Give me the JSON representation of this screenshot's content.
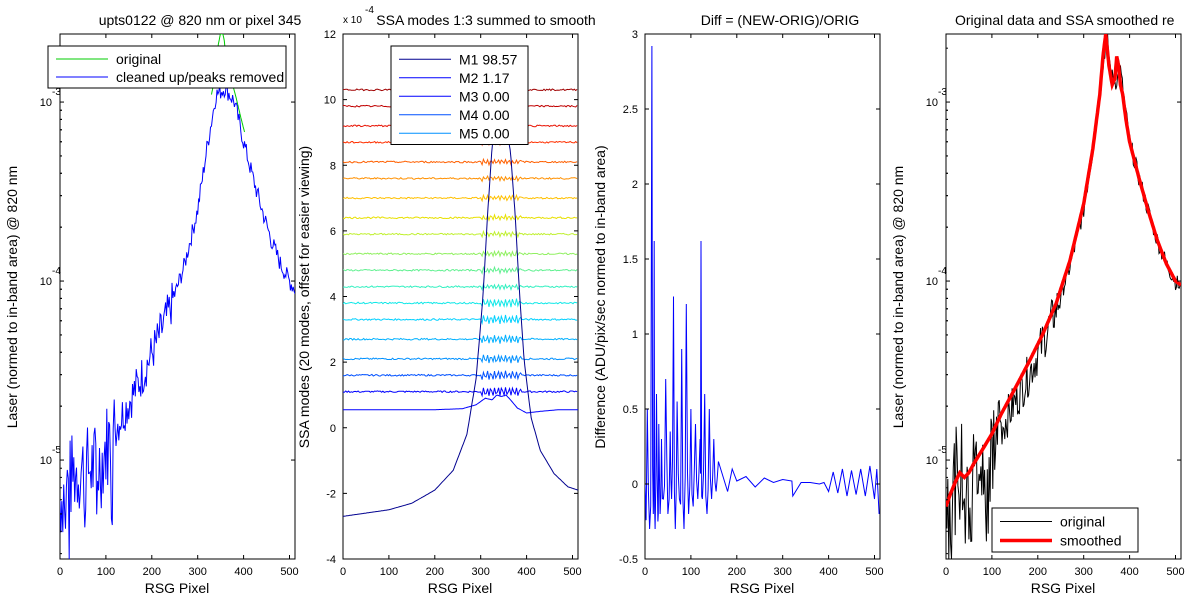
{
  "chart_data": [
    {
      "type": "line",
      "title": "upts0122 @ 820 nm or pixel 345",
      "xlabel": "RSG Pixel",
      "ylabel": "Laser (normed to in-band area) @ 820 nm",
      "xlim": [
        0,
        512
      ],
      "ylim": [
        2.8e-06,
        0.0024
      ],
      "yscale": "log",
      "xticks": [
        "0",
        "100",
        "200",
        "300",
        "400",
        "500"
      ],
      "yticks": [
        {
          "base": "10",
          "exp": "-5",
          "value": 1e-05
        },
        {
          "base": "10",
          "exp": "-4",
          "value": 0.0001
        },
        {
          "base": "10",
          "exp": "-3",
          "value": 0.001
        }
      ],
      "legend": {
        "position": "top",
        "entries": [
          "original",
          "cleaned up/peaks removed"
        ]
      },
      "series": [
        {
          "name": "original",
          "color": "#00cc00",
          "x": [
            330,
            338,
            345,
            352,
            358,
            362,
            366,
            370,
            376,
            382,
            388,
            395,
            402
          ],
          "y": [
            0.0011,
            0.0014,
            0.0021,
            0.0026,
            0.0022,
            0.0017,
            0.0014,
            0.00135,
            0.00125,
            0.0011,
            0.00095,
            0.0008,
            0.00068
          ]
        },
        {
          "name": "cleaned up/peaks removed",
          "color": "#0000ff",
          "x": [
            0,
            30,
            60,
            90,
            100,
            120,
            150,
            180,
            210,
            240,
            270,
            300,
            320,
            340,
            360,
            380,
            400,
            420,
            440,
            460,
            480,
            500,
            512
          ],
          "y": [
            6e-06,
            8.5e-06,
            9e-06,
            9.5e-06,
            1.2e-05,
            1.5e-05,
            2.1e-05,
            3e-05,
            4.5e-05,
            7e-05,
            0.00012,
            0.00025,
            0.00055,
            0.0011,
            0.0012,
            0.001,
            0.0006,
            0.00038,
            0.00025,
            0.00017,
            0.000125,
            0.0001,
            9e-05
          ]
        }
      ]
    },
    {
      "type": "line",
      "title": "SSA modes 1:3 summed to smooth",
      "scale_note": {
        "base": "x 10",
        "exp": "-4"
      },
      "xlabel": "RSG Pixel",
      "ylabel": "SSA modes (20 modes, offset for easier viewing)",
      "xlim": [
        0,
        512
      ],
      "ylim": [
        -4,
        12
      ],
      "xticks": [
        "0",
        "100",
        "200",
        "300",
        "400",
        "500"
      ],
      "yticks": [
        "-4",
        "-2",
        "0",
        "2",
        "4",
        "6",
        "8",
        "10",
        "12"
      ],
      "legend": {
        "position": "top",
        "entries": [
          "M1 98.57",
          "M2 1.17",
          "M3 0.00",
          "M4 0.00",
          "M5 0.00"
        ]
      },
      "series": [
        {
          "name": "M1 98.57",
          "color": "#00008f",
          "x": [
            0,
            50,
            100,
            150,
            200,
            240,
            270,
            290,
            305,
            315,
            325,
            335,
            345,
            355,
            365,
            375,
            385,
            395,
            410,
            430,
            460,
            490,
            512
          ],
          "y": [
            -2.7,
            -2.6,
            -2.5,
            -2.3,
            -1.9,
            -1.3,
            -0.2,
            1.5,
            4.0,
            6.5,
            8.6,
            9.4,
            9.5,
            9.2,
            8.4,
            6.5,
            4.0,
            2.0,
            0.3,
            -0.7,
            -1.4,
            -1.8,
            -1.9
          ]
        },
        {
          "name": "M2 1.17",
          "color": "#0000ff",
          "x": [
            0,
            100,
            200,
            260,
            290,
            310,
            325,
            335,
            345,
            355,
            365,
            380,
            400,
            430,
            470,
            512
          ],
          "y": [
            0.55,
            0.55,
            0.55,
            0.58,
            0.7,
            0.9,
            0.85,
            1.0,
            0.95,
            1.0,
            0.85,
            0.6,
            0.45,
            0.5,
            0.55,
            0.55
          ]
        },
        {
          "name": "M3 0.00",
          "color": "#0000ff",
          "offset": 1.1
        },
        {
          "name": "M4 0.00",
          "color": "#0050ff",
          "offset": 1.6
        },
        {
          "name": "M5 0.00",
          "color": "#0090ff",
          "offset": 2.1
        }
      ],
      "offset_mode_colors": [
        "#00b0ff",
        "#00d0ff",
        "#10e8e8",
        "#30f0c0",
        "#60f090",
        "#90f060",
        "#c0f030",
        "#e8e000",
        "#ffc000",
        "#ff9000",
        "#ff6000",
        "#ff3000",
        "#e81000",
        "#c00000",
        "#a00000"
      ],
      "offset_mode_levels": [
        2.7,
        3.3,
        3.8,
        4.3,
        4.8,
        5.3,
        5.9,
        6.4,
        7.0,
        7.6,
        8.1,
        8.7,
        9.2,
        9.8,
        10.3
      ]
    },
    {
      "type": "line",
      "title": "Diff = (NEW-ORIG)/ORIG",
      "xlabel": "RSG Pixel",
      "ylabel": "Difference (ADU/pix/sec normed to in-band area)",
      "xlim": [
        0,
        512
      ],
      "ylim": [
        -0.5,
        3
      ],
      "xticks": [
        "0",
        "100",
        "200",
        "300",
        "400",
        "500"
      ],
      "yticks": [
        "-0.5",
        "0",
        "0.5",
        "1",
        "1.5",
        "2",
        "2.5",
        "3"
      ],
      "series": [
        {
          "name": "",
          "color": "#0000ff",
          "x": [
            0,
            5,
            10,
            15,
            18,
            20,
            22,
            25,
            28,
            30,
            33,
            36,
            40,
            45,
            50,
            55,
            58,
            62,
            66,
            70,
            75,
            80,
            85,
            90,
            95,
            100,
            105,
            110,
            115,
            120,
            122,
            125,
            130,
            135,
            140,
            145,
            150,
            155,
            160,
            170,
            180,
            190,
            200,
            220,
            240,
            260,
            280,
            300,
            320,
            322,
            340,
            360,
            380,
            390,
            400,
            410,
            420,
            430,
            440,
            450,
            460,
            470,
            480,
            490,
            500,
            505,
            510
          ],
          "y": [
            0,
            0.5,
            -0.3,
            2.92,
            -0.2,
            1.62,
            -0.3,
            0.6,
            -0.25,
            0.4,
            -0.2,
            0.3,
            -0.1,
            0.7,
            -0.2,
            0.35,
            -0.1,
            1.25,
            -0.3,
            0.55,
            -0.1,
            0.9,
            -0.3,
            1.2,
            -0.2,
            0.5,
            -0.15,
            0.4,
            -0.1,
            0.3,
            1.62,
            -0.1,
            0.6,
            -0.2,
            0.5,
            -0.1,
            0.3,
            -0.05,
            0.15,
            0.05,
            -0.05,
            0.1,
            0.02,
            0.05,
            -0.02,
            0.04,
            0.01,
            0.03,
            0.02,
            -0.08,
            0.01,
            0.01,
            0.0,
            0.01,
            -0.05,
            0.08,
            -0.06,
            0.1,
            -0.08,
            0.09,
            -0.07,
            0.1,
            -0.08,
            0.12,
            -0.1,
            0.1,
            -0.2
          ]
        }
      ]
    },
    {
      "type": "line",
      "title": "Original data and SSA smoothed re",
      "xlabel": "RSG Pixel",
      "ylabel": "Laser (normed to in-band area) @ 820 nm",
      "xlim": [
        0,
        512
      ],
      "ylim": [
        2.8e-06,
        0.0024
      ],
      "yscale": "log",
      "xticks": [
        "0",
        "100",
        "200",
        "300",
        "400",
        "500"
      ],
      "yticks": [
        {
          "base": "10",
          "exp": "-5",
          "value": 1e-05
        },
        {
          "base": "10",
          "exp": "-4",
          "value": 0.0001
        },
        {
          "base": "10",
          "exp": "-3",
          "value": 0.001
        }
      ],
      "legend": {
        "position": "bottom-right",
        "entries": [
          "original",
          "smoothed"
        ]
      },
      "series": [
        {
          "name": "original",
          "color": "#000000",
          "x": [
            0,
            30,
            60,
            90,
            100,
            120,
            150,
            180,
            210,
            240,
            270,
            300,
            320,
            340,
            350,
            360,
            370,
            380,
            400,
            420,
            440,
            460,
            480,
            500,
            512
          ],
          "y": [
            6e-06,
            8.5e-06,
            9e-06,
            9.5e-06,
            1.2e-05,
            1.5e-05,
            2.1e-05,
            3e-05,
            4.5e-05,
            7e-05,
            0.00012,
            0.00025,
            0.00055,
            0.0014,
            0.0024,
            0.0014,
            0.0013,
            0.0015,
            0.0006,
            0.00038,
            0.00025,
            0.00017,
            0.000125,
            0.0001,
            9e-05
          ]
        },
        {
          "name": "smoothed",
          "color": "#ff0000",
          "x": [
            0,
            10,
            20,
            30,
            40,
            50,
            60,
            80,
            100,
            120,
            150,
            180,
            210,
            240,
            270,
            300,
            320,
            335,
            342,
            348,
            355,
            362,
            368,
            372,
            376,
            380,
            385,
            392,
            400,
            420,
            440,
            460,
            480,
            500,
            512
          ],
          "y": [
            5.5e-06,
            6.5e-06,
            7.5e-06,
            8.5e-06,
            8e-06,
            8.5e-06,
            9.5e-06,
            1.15e-05,
            1.4e-05,
            1.8e-05,
            2.5e-05,
            3.5e-05,
            5e-05,
            7.5e-05,
            0.00013,
            0.00027,
            0.00055,
            0.0011,
            0.0018,
            0.0024,
            0.0016,
            0.00125,
            0.00135,
            0.0018,
            0.0016,
            0.00125,
            0.0011,
            0.0008,
            0.0006,
            0.00038,
            0.00025,
            0.00017,
            0.000125,
            0.0001,
            9.5e-05
          ]
        }
      ]
    }
  ]
}
